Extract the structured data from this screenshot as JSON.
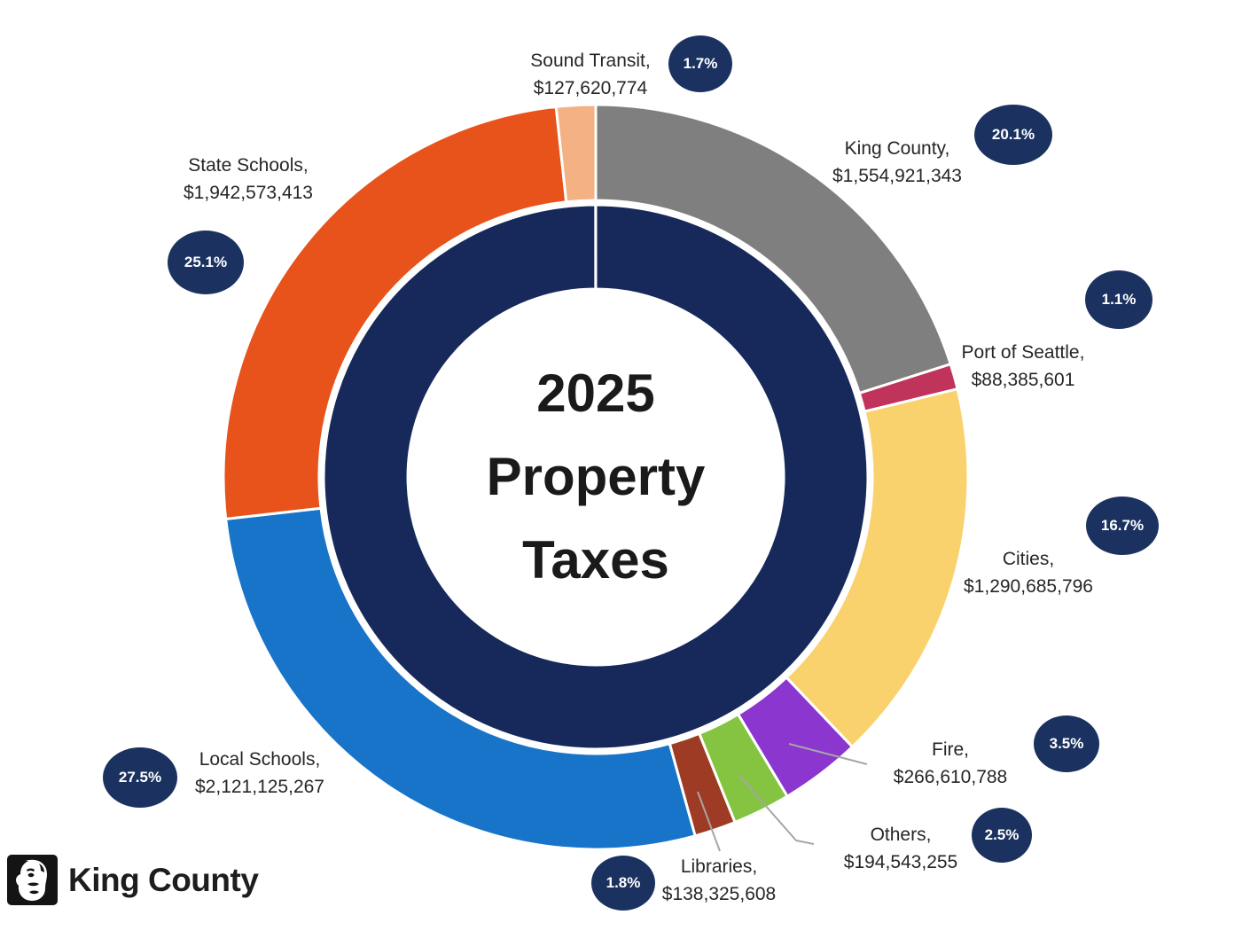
{
  "title": {
    "line1": "2025",
    "line2": "Property",
    "line3": "Taxes"
  },
  "logo": {
    "text": "King County"
  },
  "chart_data": {
    "type": "pie",
    "subtype": "double-ring-donut",
    "title": "2025 Property Taxes",
    "center_label": "2025 Property Taxes",
    "start_angle_deg": 0,
    "direction": "clockwise",
    "total_percent": 100,
    "inner_ring_color": "#16295A",
    "badge_color": "#1B3261",
    "leader_line_color": "#A6A6A6",
    "segments": [
      {
        "label": "King County",
        "label_text": "King County,",
        "value": 1554921343,
        "value_text": "$1,554,921,343",
        "percent": 20.1,
        "percent_text": "20.1%",
        "color": "#7F7F7F"
      },
      {
        "label": "Port of Seattle",
        "label_text": "Port of Seattle,",
        "value": 88385601,
        "value_text": "$88,385,601",
        "percent": 1.1,
        "percent_text": "1.1%",
        "color": "#C0335B"
      },
      {
        "label": "Cities",
        "label_text": "Cities,",
        "value": 1290685796,
        "value_text": "$1,290,685,796",
        "percent": 16.7,
        "percent_text": "16.7%",
        "color": "#FAD26D"
      },
      {
        "label": "Fire",
        "label_text": "Fire,",
        "value": 266610788,
        "value_text": "$266,610,788",
        "percent": 3.5,
        "percent_text": "3.5%",
        "color": "#8B36CE"
      },
      {
        "label": "Others",
        "label_text": "Others,",
        "value": 194543255,
        "value_text": "$194,543,255",
        "percent": 2.5,
        "percent_text": "2.5%",
        "color": "#85C441"
      },
      {
        "label": "Libraries",
        "label_text": "Libraries,",
        "value": 138325608,
        "value_text": "$138,325,608",
        "percent": 1.8,
        "percent_text": "1.8%",
        "color": "#9D3B24"
      },
      {
        "label": "Local Schools",
        "label_text": "Local Schools,",
        "value": 2121125267,
        "value_text": "$2,121,125,267",
        "percent": 27.5,
        "percent_text": "27.5%",
        "color": "#1874C8"
      },
      {
        "label": "State Schools",
        "label_text": "State Schools,",
        "value": 1942573413,
        "value_text": "$1,942,573,413",
        "percent": 25.1,
        "percent_text": "25.1%",
        "color": "#E8531B"
      },
      {
        "label": "Sound Transit",
        "label_text": "Sound Transit,",
        "value": 127620774,
        "value_text": "$127,620,774",
        "percent": 1.7,
        "percent_text": "1.7%",
        "color": "#F4B183"
      }
    ]
  }
}
